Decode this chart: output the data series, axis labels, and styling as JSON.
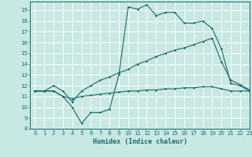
{
  "xlabel": "Humidex (Indice chaleur)",
  "xlim": [
    -0.5,
    23
  ],
  "ylim": [
    8,
    19.8
  ],
  "yticks": [
    8,
    9,
    10,
    11,
    12,
    13,
    14,
    15,
    16,
    17,
    18,
    19
  ],
  "xticks": [
    0,
    1,
    2,
    3,
    4,
    5,
    6,
    7,
    8,
    9,
    10,
    11,
    12,
    13,
    14,
    15,
    16,
    17,
    18,
    19,
    20,
    21,
    22,
    23
  ],
  "bg_color": "#c8e8e4",
  "grid_color": "#ffffff",
  "line_color": "#1a6b6b",
  "line1_x": [
    0,
    1,
    2,
    3,
    4,
    5,
    6,
    7,
    8,
    9,
    10,
    11,
    12,
    13,
    14,
    15,
    16,
    17,
    18,
    19,
    20,
    21,
    22,
    23
  ],
  "line1_y": [
    11.5,
    11.5,
    11.5,
    11.0,
    10.0,
    8.5,
    9.5,
    9.5,
    9.8,
    13.0,
    19.3,
    19.1,
    19.5,
    18.5,
    18.8,
    18.8,
    17.8,
    17.8,
    18.0,
    17.3,
    15.4,
    12.2,
    12.0,
    11.5
  ],
  "line2_x": [
    0,
    1,
    2,
    3,
    4,
    5,
    6,
    7,
    8,
    9,
    10,
    11,
    12,
    13,
    14,
    15,
    16,
    17,
    18,
    19,
    20,
    21,
    22,
    23
  ],
  "line2_y": [
    11.5,
    11.5,
    12.0,
    11.5,
    10.5,
    11.5,
    12.0,
    12.5,
    12.8,
    13.2,
    13.5,
    14.0,
    14.3,
    14.7,
    15.0,
    15.3,
    15.5,
    15.8,
    16.1,
    16.4,
    14.2,
    12.5,
    12.1,
    11.6
  ],
  "line3_x": [
    0,
    1,
    2,
    3,
    4,
    5,
    6,
    7,
    8,
    9,
    10,
    11,
    12,
    13,
    14,
    15,
    16,
    17,
    18,
    19,
    20,
    21,
    22,
    23
  ],
  "line3_y": [
    11.5,
    11.5,
    11.5,
    11.0,
    10.8,
    11.0,
    11.1,
    11.2,
    11.3,
    11.4,
    11.5,
    11.5,
    11.6,
    11.6,
    11.7,
    11.7,
    11.8,
    11.8,
    11.9,
    11.9,
    11.7,
    11.5,
    11.5,
    11.5
  ]
}
